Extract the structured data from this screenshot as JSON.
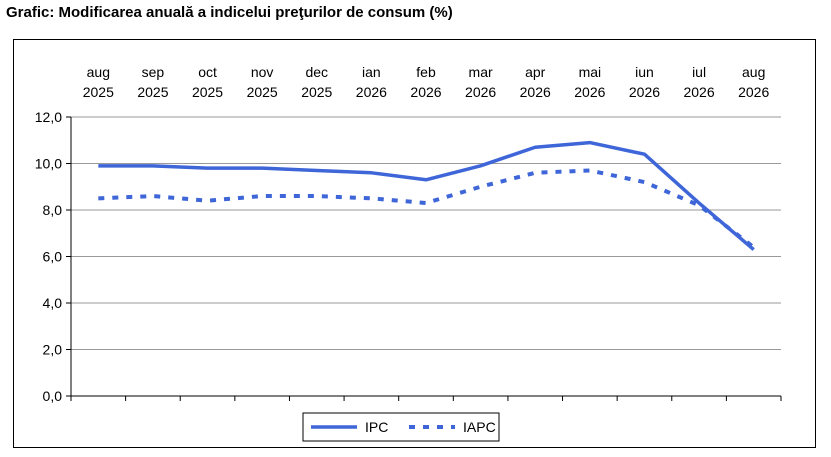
{
  "title": "Grafic: Modificarea anuală a indicelui preţurilor de consum (%)",
  "chart_data": {
    "type": "line",
    "categories": [
      [
        "aug",
        "2025"
      ],
      [
        "sep",
        "2025"
      ],
      [
        "oct",
        "2025"
      ],
      [
        "nov",
        "2025"
      ],
      [
        "dec",
        "2025"
      ],
      [
        "ian",
        "2026"
      ],
      [
        "feb",
        "2026"
      ],
      [
        "mar",
        "2026"
      ],
      [
        "apr",
        "2026"
      ],
      [
        "mai",
        "2026"
      ],
      [
        "iun",
        "2026"
      ],
      [
        "iul",
        "2026"
      ],
      [
        "aug",
        "2026"
      ]
    ],
    "series": [
      {
        "name": "IPC",
        "style": "solid",
        "color": "#3e66d8",
        "values": [
          9.9,
          9.9,
          9.8,
          9.8,
          9.7,
          9.6,
          9.3,
          9.9,
          10.7,
          10.9,
          10.4,
          8.3,
          6.3
        ]
      },
      {
        "name": "IAPC",
        "style": "dotted",
        "color": "#3e66d8",
        "values": [
          8.5,
          8.6,
          8.4,
          8.6,
          8.6,
          8.5,
          8.3,
          9.0,
          9.6,
          9.7,
          9.2,
          8.2,
          6.4
        ]
      }
    ],
    "y_ticks": [
      "12,0",
      "10,0",
      "8,0",
      "6,0",
      "4,0",
      "2,0",
      "0,0"
    ],
    "ylim": [
      0,
      12
    ],
    "grid": true,
    "legend_position": "bottom-center",
    "xaxis_position": "top"
  }
}
